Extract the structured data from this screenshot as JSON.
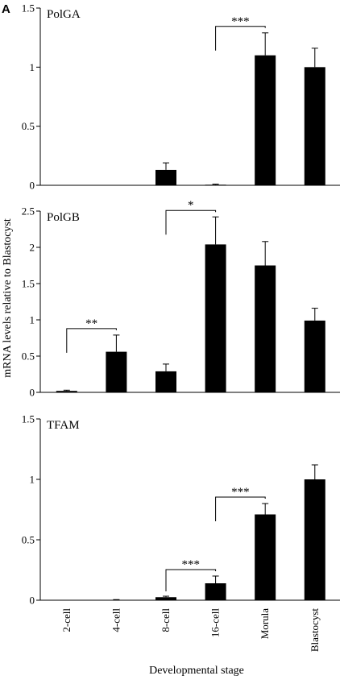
{
  "figure_label": "A",
  "ylabel": "mRNA levels relative to Blastocyst",
  "xlabel": "Developmental stage",
  "categories": [
    "2-cell",
    "4-cell",
    "8-cell",
    "16-cell",
    "Morula",
    "Blastocyst"
  ],
  "chart_data": [
    {
      "type": "bar",
      "title": "PolGA",
      "categories": [
        "2-cell",
        "4-cell",
        "8-cell",
        "16-cell",
        "Morula",
        "Blastocyst"
      ],
      "values": [
        0,
        0,
        0.13,
        0.005,
        1.1,
        1.0
      ],
      "errors": [
        0,
        0,
        0.06,
        0.005,
        0.19,
        0.16
      ],
      "ylim": [
        0,
        1.5
      ],
      "yticks": [
        "0",
        "0.5",
        "1",
        "1.5"
      ],
      "ytick_values": [
        0,
        0.5,
        1,
        1.5
      ],
      "significance": [
        {
          "from": "16-cell",
          "to": "Morula",
          "label": "***"
        }
      ]
    },
    {
      "type": "bar",
      "title": "PolGB",
      "categories": [
        "2-cell",
        "4-cell",
        "8-cell",
        "16-cell",
        "Morula",
        "Blastocyst"
      ],
      "values": [
        0.02,
        0.56,
        0.29,
        2.04,
        1.75,
        0.99
      ],
      "errors": [
        0.01,
        0.23,
        0.1,
        0.38,
        0.33,
        0.17
      ],
      "ylim": [
        0,
        2.5
      ],
      "yticks": [
        "0",
        "0.5",
        "1",
        "1.5",
        "2",
        "2.5"
      ],
      "ytick_values": [
        0,
        0.5,
        1,
        1.5,
        2,
        2.5
      ],
      "significance": [
        {
          "from": "2-cell",
          "to": "4-cell",
          "label": "**"
        },
        {
          "from": "8-cell",
          "to": "16-cell",
          "label": "*"
        }
      ]
    },
    {
      "type": "bar",
      "title": "TFAM",
      "categories": [
        "2-cell",
        "4-cell",
        "8-cell",
        "16-cell",
        "Morula",
        "Blastocyst"
      ],
      "values": [
        0,
        0.003,
        0.025,
        0.14,
        0.71,
        1.0
      ],
      "errors": [
        0,
        0.002,
        0.008,
        0.06,
        0.09,
        0.12
      ],
      "ylim": [
        0,
        1.5
      ],
      "yticks": [
        "0",
        "0.5",
        "1",
        "1.5"
      ],
      "ytick_values": [
        0,
        0.5,
        1,
        1.5
      ],
      "significance": [
        {
          "from": "8-cell",
          "to": "16-cell",
          "label": "***"
        },
        {
          "from": "16-cell",
          "to": "Morula",
          "label": "***"
        }
      ]
    }
  ]
}
